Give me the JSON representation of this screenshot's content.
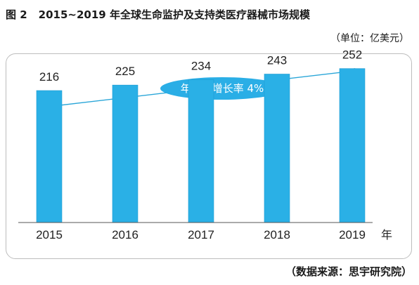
{
  "header": {
    "figure_number": "图 2",
    "title": "2015~2019 年全球生命监护及支持类医疗器械市场规模",
    "unit": "（单位：亿美元）"
  },
  "footer": {
    "source": "（数据来源：思宇研究院）"
  },
  "chart_data": {
    "type": "bar",
    "title": "2015~2019 年全球生命监护及支持类医疗器械市场规模",
    "categories": [
      "2015",
      "2016",
      "2017",
      "2018",
      "2019"
    ],
    "values": [
      216,
      225,
      234,
      243,
      252
    ],
    "x_unit_label": "年",
    "ylabel": "",
    "ylim": [
      0,
      270
    ],
    "grid": false,
    "annotation": "年复合增长率 4%",
    "colors": {
      "bar": "#2ab0e6",
      "bar_edge": "#1d9bd1",
      "trend_arrow": "#2aa6d8",
      "annotation_bg": "#2aaee6",
      "axis": "#555555"
    }
  }
}
